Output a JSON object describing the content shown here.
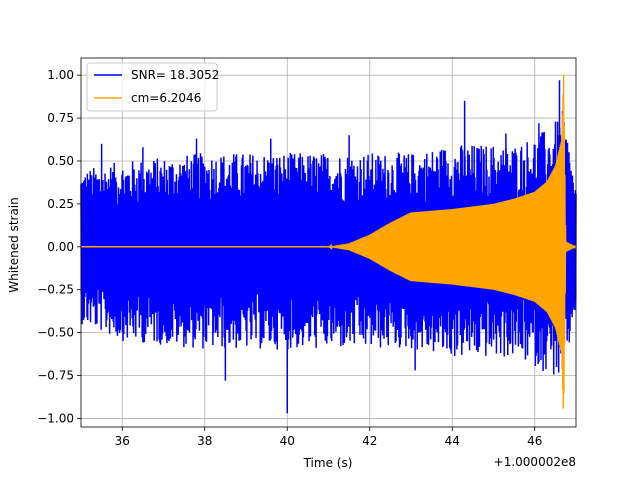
{
  "chart_data": {
    "type": "line",
    "title": "",
    "xlabel": "Time (s)",
    "ylabel": "Whitened strain",
    "x_offset_label": "+1.000002e8",
    "xlim": [
      35,
      47
    ],
    "ylim": [
      -1.05,
      1.1
    ],
    "x_ticks": [
      36,
      38,
      40,
      42,
      44,
      46
    ],
    "y_ticks": [
      -1.0,
      -0.75,
      -0.5,
      -0.25,
      0.0,
      0.25,
      0.5,
      0.75,
      1.0
    ],
    "x_tick_labels": [
      "36",
      "38",
      "40",
      "42",
      "44",
      "46"
    ],
    "y_tick_labels": [
      "−1.00",
      "−0.75",
      "−0.50",
      "−0.25",
      "0.00",
      "0.25",
      "0.50",
      "0.75",
      "1.00"
    ],
    "grid": true,
    "legend_position": "top-left",
    "series": [
      {
        "name": "SNR= 18.3052",
        "color": "#0000ff",
        "x_range": [
          35.0,
          47.0
        ],
        "envelope_x": [
          35.0,
          36.0,
          38.0,
          40.0,
          41.0,
          42.0,
          43.0,
          44.0,
          45.0,
          45.5,
          46.0,
          46.4,
          46.7,
          47.0
        ],
        "envelope_upper": [
          0.45,
          0.5,
          0.55,
          0.55,
          0.55,
          0.55,
          0.55,
          0.6,
          0.6,
          0.6,
          0.65,
          0.7,
          0.8,
          0.35
        ],
        "envelope_lower": [
          -0.45,
          -0.55,
          -0.6,
          -0.6,
          -0.6,
          -0.6,
          -0.6,
          -0.65,
          -0.65,
          -0.65,
          -0.7,
          -0.75,
          -0.8,
          -0.35
        ],
        "spike_x": [
          35.5,
          36.5,
          37.8,
          38.5,
          39.6,
          40.0,
          41.5,
          43.1,
          44.3,
          45.3,
          46.1,
          46.6
        ],
        "spike_y": [
          0.6,
          0.58,
          0.63,
          -0.78,
          0.63,
          -0.97,
          0.65,
          -0.72,
          0.85,
          0.66,
          0.72,
          0.97
        ]
      },
      {
        "name": "cm=6.2046",
        "color": "#ffa500",
        "envelope_x": [
          35.0,
          41.0,
          41.5,
          42.0,
          42.5,
          43.0,
          43.5,
          44.0,
          45.0,
          45.5,
          46.0,
          46.3,
          46.5,
          46.65,
          46.7,
          46.75,
          47.0
        ],
        "envelope_amplitude": [
          0.0,
          0.0,
          0.02,
          0.07,
          0.14,
          0.2,
          0.21,
          0.22,
          0.25,
          0.28,
          0.32,
          0.38,
          0.47,
          0.62,
          1.0,
          0.03,
          0.0
        ]
      }
    ]
  }
}
